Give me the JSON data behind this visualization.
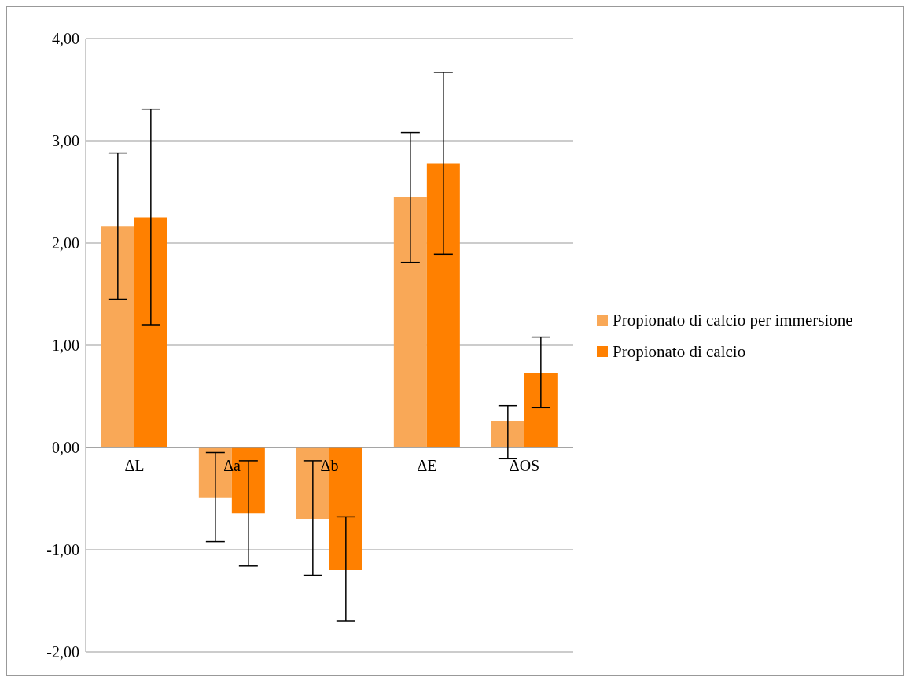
{
  "chart_data": {
    "type": "bar",
    "categories": [
      "ΔL",
      "Δa",
      "Δb",
      "ΔE",
      "ΔOS"
    ],
    "series": [
      {
        "name": "Propionato di calcio per immersione",
        "color": "#f9a857",
        "values": [
          2.16,
          -0.49,
          -0.7,
          2.45,
          0.26
        ],
        "errors": [
          [
            1.45,
            2.88
          ],
          [
            -0.92,
            -0.05
          ],
          [
            -1.25,
            -0.13
          ],
          [
            1.81,
            3.08
          ],
          [
            -0.11,
            0.41
          ]
        ]
      },
      {
        "name": "Propionato di calcio",
        "color": "#ff8000",
        "values": [
          2.25,
          -0.64,
          -1.2,
          2.78,
          0.73
        ],
        "errors": [
          [
            1.2,
            3.31
          ],
          [
            -1.16,
            -0.13
          ],
          [
            -1.7,
            -0.68
          ],
          [
            1.89,
            3.67
          ],
          [
            0.39,
            1.08
          ]
        ]
      }
    ],
    "ylim": [
      -2,
      4
    ],
    "yticks": [
      {
        "value": -2,
        "label": "-2,00"
      },
      {
        "value": -1,
        "label": "-1,00"
      },
      {
        "value": 0,
        "label": "0,00"
      },
      {
        "value": 1,
        "label": "1,00"
      },
      {
        "value": 2,
        "label": "2,00"
      },
      {
        "value": 3,
        "label": "3,00"
      },
      {
        "value": 4,
        "label": "4,00"
      }
    ],
    "grid": "y",
    "legend": "right"
  }
}
